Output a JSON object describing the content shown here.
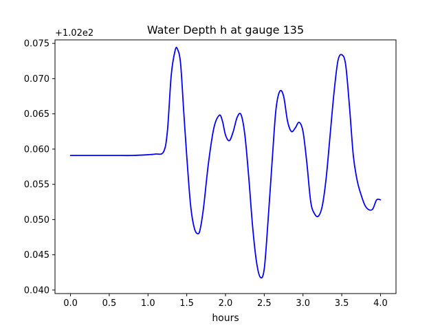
{
  "chart_data": {
    "type": "line",
    "title": "Water Depth h at gauge 135",
    "xlabel": "hours",
    "ylabel": "",
    "y_offset_text": "+1.02e2",
    "xlim": [
      -0.2,
      4.2
    ],
    "ylim": [
      0.0395,
      0.0755
    ],
    "grid": false,
    "x_ticks": [
      0.0,
      0.5,
      1.0,
      1.5,
      2.0,
      2.5,
      3.0,
      3.5,
      4.0
    ],
    "x_tick_labels": [
      "0.0",
      "0.5",
      "1.0",
      "1.5",
      "2.0",
      "2.5",
      "3.0",
      "3.5",
      "4.0"
    ],
    "y_ticks": [
      0.04,
      0.045,
      0.05,
      0.055,
      0.06,
      0.065,
      0.07,
      0.075
    ],
    "y_tick_labels": [
      "0.040",
      "0.045",
      "0.050",
      "0.055",
      "0.060",
      "0.065",
      "0.070",
      "0.075"
    ],
    "series": [
      {
        "name": "",
        "color": "#0000ff",
        "x": [
          0.0,
          0.2,
          0.4,
          0.6,
          0.8,
          1.0,
          1.1,
          1.2,
          1.25,
          1.3,
          1.35,
          1.38,
          1.42,
          1.46,
          1.5,
          1.55,
          1.6,
          1.65,
          1.68,
          1.72,
          1.78,
          1.85,
          1.92,
          1.96,
          2.0,
          2.05,
          2.1,
          2.15,
          2.2,
          2.25,
          2.3,
          2.35,
          2.4,
          2.45,
          2.5,
          2.55,
          2.6,
          2.65,
          2.7,
          2.75,
          2.8,
          2.85,
          2.9,
          2.95,
          3.0,
          3.05,
          3.1,
          3.15,
          3.2,
          3.25,
          3.3,
          3.35,
          3.4,
          3.45,
          3.5,
          3.55,
          3.6,
          3.65,
          3.7,
          3.75,
          3.8,
          3.85,
          3.9,
          3.95,
          4.0
        ],
        "y": [
          0.0591,
          0.0591,
          0.0591,
          0.0591,
          0.0591,
          0.0592,
          0.0593,
          0.0596,
          0.0625,
          0.0705,
          0.074,
          0.0742,
          0.0722,
          0.0655,
          0.059,
          0.052,
          0.0487,
          0.048,
          0.049,
          0.052,
          0.058,
          0.063,
          0.0648,
          0.064,
          0.062,
          0.0612,
          0.0625,
          0.0645,
          0.0649,
          0.062,
          0.056,
          0.049,
          0.044,
          0.0418,
          0.043,
          0.05,
          0.058,
          0.0655,
          0.0682,
          0.0675,
          0.064,
          0.0625,
          0.063,
          0.0638,
          0.0625,
          0.058,
          0.0525,
          0.0508,
          0.0505,
          0.052,
          0.056,
          0.062,
          0.068,
          0.0725,
          0.0734,
          0.072,
          0.066,
          0.059,
          0.0555,
          0.0535,
          0.052,
          0.0514,
          0.0515,
          0.0528,
          0.0528
        ]
      }
    ]
  }
}
